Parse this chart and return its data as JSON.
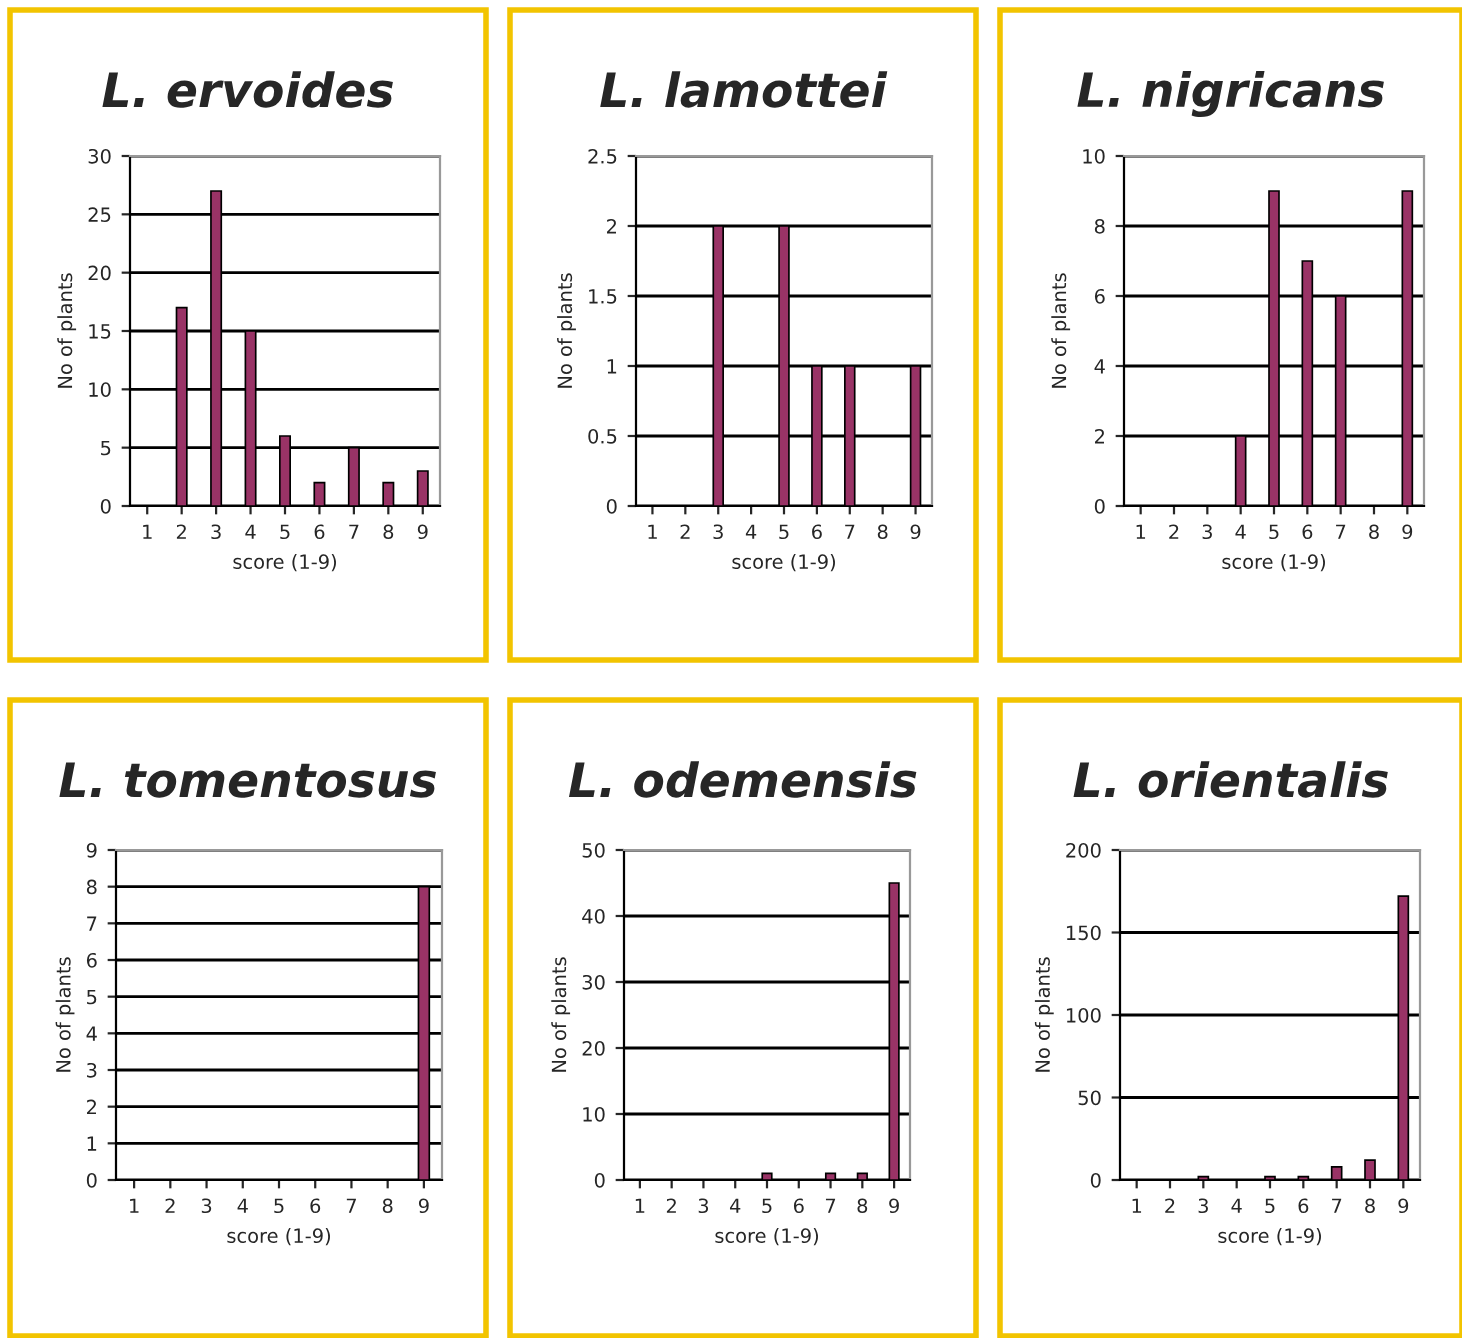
{
  "chart_data": [
    {
      "type": "bar",
      "title": "L. ervoides",
      "xlabel": "score (1-9)",
      "ylabel": "No of plants",
      "categories": [
        "1",
        "2",
        "3",
        "4",
        "5",
        "6",
        "7",
        "8",
        "9"
      ],
      "values": [
        0,
        17,
        27,
        15,
        6,
        2,
        5,
        2,
        3
      ],
      "color": "#993366",
      "ylim": [
        0,
        30
      ],
      "yticks": [
        0,
        5,
        10,
        15,
        20,
        25,
        30
      ],
      "grid": "y"
    },
    {
      "type": "bar",
      "title": "L. lamottei",
      "xlabel": "score (1-9)",
      "ylabel": "No of plants",
      "categories": [
        "1",
        "2",
        "3",
        "4",
        "5",
        "6",
        "7",
        "8",
        "9"
      ],
      "values": [
        0,
        0,
        2,
        0,
        2,
        1,
        1,
        0,
        1
      ],
      "color": "#993366",
      "ylim": [
        0,
        2.5
      ],
      "yticks": [
        0,
        0.5,
        1,
        1.5,
        2,
        2.5
      ],
      "grid": "y"
    },
    {
      "type": "bar",
      "title": "L. nigricans",
      "xlabel": "score (1-9)",
      "ylabel": "No of plants",
      "categories": [
        "1",
        "2",
        "3",
        "4",
        "5",
        "6",
        "7",
        "8",
        "9"
      ],
      "values": [
        0,
        0,
        0,
        2,
        9,
        7,
        6,
        0,
        9
      ],
      "color": "#993366",
      "ylim": [
        0,
        10
      ],
      "yticks": [
        0,
        2,
        4,
        6,
        8,
        10
      ],
      "grid": "y"
    },
    {
      "type": "bar",
      "title": "L. tomentosus",
      "xlabel": "score (1-9)",
      "ylabel": "No of plants",
      "categories": [
        "1",
        "2",
        "3",
        "4",
        "5",
        "6",
        "7",
        "8",
        "9"
      ],
      "values": [
        0,
        0,
        0,
        0,
        0,
        0,
        0,
        0,
        8
      ],
      "color": "#993366",
      "ylim": [
        0,
        9
      ],
      "yticks": [
        0,
        1,
        2,
        3,
        4,
        5,
        6,
        7,
        8,
        9
      ],
      "grid": "y"
    },
    {
      "type": "bar",
      "title": "L. odemensis",
      "xlabel": "score (1-9)",
      "ylabel": "No of plants",
      "categories": [
        "1",
        "2",
        "3",
        "4",
        "5",
        "6",
        "7",
        "8",
        "9"
      ],
      "values": [
        0,
        0,
        0,
        0,
        1,
        0,
        1,
        1,
        45
      ],
      "color": "#993366",
      "ylim": [
        0,
        50
      ],
      "yticks": [
        0,
        10,
        20,
        30,
        40,
        50
      ],
      "grid": "y"
    },
    {
      "type": "bar",
      "title": "L. orientalis",
      "xlabel": "score (1-9)",
      "ylabel": "No of plants",
      "categories": [
        "1",
        "2",
        "3",
        "4",
        "5",
        "6",
        "7",
        "8",
        "9"
      ],
      "values": [
        0,
        0,
        2,
        0,
        2,
        2,
        8,
        12,
        172
      ],
      "color": "#993366",
      "ylim": [
        0,
        200
      ],
      "yticks": [
        0,
        50,
        100,
        150,
        200
      ],
      "grid": "y"
    }
  ]
}
